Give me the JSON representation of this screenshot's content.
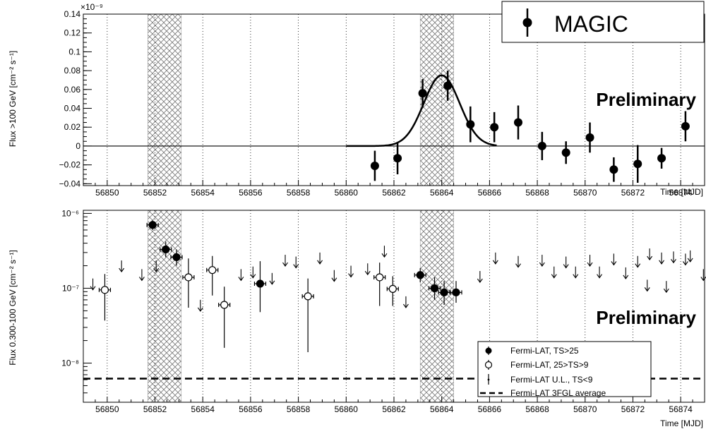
{
  "chart_data": [
    {
      "type": "scatter",
      "xlabel": "Time [MJD]",
      "ylabel": "Flux >100 GeV [cm⁻² s⁻¹]",
      "y_multiplier_label": "×10⁻⁹",
      "xlim": [
        56849,
        56875
      ],
      "ylim": [
        -0.042,
        0.14
      ],
      "x_ticks": [
        "56850",
        "56852",
        "56854",
        "56856",
        "56858",
        "56860",
        "56862",
        "56864",
        "56866",
        "56868",
        "56870",
        "56872",
        "56874"
      ],
      "y_ticks": [
        "−0.04",
        "−0.02",
        "0",
        "0.02",
        "0.04",
        "0.06",
        "0.08",
        "0.1",
        "0.12",
        "0.14"
      ],
      "grid": "vertical dotted lines at each day",
      "shaded_intervals": [
        [
          56851.7,
          56853.1
        ],
        [
          56863.1,
          56864.5
        ]
      ],
      "zero_line": true,
      "legend": {
        "position": "top-right",
        "entries": [
          "MAGIC"
        ]
      },
      "annotation": "Preliminary",
      "series": [
        {
          "name": "MAGIC",
          "points": [
            {
              "x": 56861.2,
              "y": -0.021,
              "yerr": 0.016
            },
            {
              "x": 56862.15,
              "y": -0.013,
              "yerr": 0.017
            },
            {
              "x": 56863.2,
              "y": 0.056,
              "yerr": 0.015
            },
            {
              "x": 56864.25,
              "y": 0.064,
              "yerr": 0.016
            },
            {
              "x": 56865.2,
              "y": 0.023,
              "yerr": 0.019
            },
            {
              "x": 56866.2,
              "y": 0.02,
              "yerr": 0.016
            },
            {
              "x": 56867.2,
              "y": 0.025,
              "yerr": 0.018
            },
            {
              "x": 56868.2,
              "y": 0.0,
              "yerr": 0.015
            },
            {
              "x": 56869.2,
              "y": -0.007,
              "yerr": 0.012
            },
            {
              "x": 56870.2,
              "y": 0.009,
              "yerr": 0.016
            },
            {
              "x": 56871.2,
              "y": -0.025,
              "yerr": 0.013
            },
            {
              "x": 56872.2,
              "y": -0.019,
              "yerr": 0.02
            },
            {
              "x": 56873.2,
              "y": -0.013,
              "yerr": 0.011
            },
            {
              "x": 56874.2,
              "y": 0.021,
              "yerr": 0.016
            }
          ]
        }
      ],
      "fit_curve": {
        "shape": "gaussian",
        "amplitude": 0.075,
        "mean": 56864.0,
        "sigma": 0.75,
        "x_range": [
          56860.0,
          56866.3
        ]
      }
    },
    {
      "type": "scatter",
      "xlabel": "Time [MJD]",
      "ylabel": "Flux  0.300-100 GeV [cm⁻² s⁻¹]",
      "y_scale": "log",
      "xlim": [
        56849,
        56875
      ],
      "ylim": [
        3e-09,
        1.1e-06
      ],
      "x_ticks": [
        "56850",
        "56852",
        "56854",
        "56856",
        "56858",
        "56860",
        "56862",
        "56864",
        "56866",
        "56868",
        "56870",
        "56872",
        "56874"
      ],
      "y_ticks": [
        {
          "value": 1e-08,
          "label": "10⁻⁸"
        },
        {
          "value": 1e-07,
          "label": "10⁻⁷"
        },
        {
          "value": 1e-06,
          "label": "10⁻⁶"
        }
      ],
      "grid": "vertical dotted lines at each day",
      "shaded_intervals": [
        [
          56851.7,
          56853.1
        ],
        [
          56863.1,
          56864.5
        ]
      ],
      "legend": {
        "position": "bottom-right",
        "entries": [
          "Fermi-LAT, TS>25",
          "Fermi-LAT, 25>TS>9",
          "Fermi-LAT U.L., TS<9",
          "Fermi-LAT 3FGL average"
        ]
      },
      "annotation": "Preliminary",
      "series": [
        {
          "name": "Fermi-LAT, TS>25",
          "points": [
            {
              "x": 56851.9,
              "y": 7e-07,
              "ylo": 6e-07,
              "yhi": 8e-07
            },
            {
              "x": 56852.45,
              "y": 3.3e-07,
              "ylo": 2.6e-07,
              "yhi": 4.2e-07
            },
            {
              "x": 56852.9,
              "y": 2.6e-07,
              "ylo": 2e-07,
              "yhi": 3.3e-07
            },
            {
              "x": 56856.4,
              "y": 1.15e-07,
              "ylo": 4.8e-08,
              "yhi": 2.3e-07
            },
            {
              "x": 56863.1,
              "y": 1.5e-07,
              "ylo": 1.2e-07,
              "yhi": 1.85e-07
            },
            {
              "x": 56863.7,
              "y": 1e-07,
              "ylo": 7e-08,
              "yhi": 1.4e-07
            },
            {
              "x": 56864.1,
              "y": 8.8e-08,
              "ylo": 6e-08,
              "yhi": 1.25e-07
            },
            {
              "x": 56864.6,
              "y": 8.8e-08,
              "ylo": 6.4e-08,
              "yhi": 1.25e-07
            }
          ]
        },
        {
          "name": "Fermi-LAT, 25>TS>9",
          "points": [
            {
              "x": 56849.9,
              "y": 9.5e-08,
              "ylo": 3.7e-08,
              "yhi": 1.55e-07
            },
            {
              "x": 56853.4,
              "y": 1.4e-07,
              "ylo": 5.5e-08,
              "yhi": 2.5e-07
            },
            {
              "x": 56854.4,
              "y": 1.75e-07,
              "ylo": 8e-08,
              "yhi": 2.7e-07
            },
            {
              "x": 56854.9,
              "y": 6e-08,
              "ylo": 1.6e-08,
              "yhi": 1.05e-07
            },
            {
              "x": 56858.4,
              "y": 7.8e-08,
              "ylo": 1.4e-08,
              "yhi": 1.35e-07
            },
            {
              "x": 56861.4,
              "y": 1.4e-07,
              "ylo": 5.8e-08,
              "yhi": 2.2e-07
            },
            {
              "x": 56861.95,
              "y": 9.8e-08,
              "ylo": 5.8e-08,
              "yhi": 1.45e-07
            }
          ]
        },
        {
          "name": "Fermi-LAT U.L., TS<9",
          "upper_limits": [
            {
              "x": 56849.4,
              "y": 1.35e-07
            },
            {
              "x": 56850.6,
              "y": 2.35e-07
            },
            {
              "x": 56851.45,
              "y": 1.8e-07
            },
            {
              "x": 56852.05,
              "y": 2.35e-07
            },
            {
              "x": 56853.9,
              "y": 7e-08
            },
            {
              "x": 56855.6,
              "y": 1.8e-07
            },
            {
              "x": 56856.1,
              "y": 1.95e-07
            },
            {
              "x": 56856.9,
              "y": 1.6e-07
            },
            {
              "x": 56857.45,
              "y": 2.8e-07
            },
            {
              "x": 56857.9,
              "y": 2.65e-07
            },
            {
              "x": 56858.9,
              "y": 3e-07
            },
            {
              "x": 56859.5,
              "y": 1.75e-07
            },
            {
              "x": 56860.2,
              "y": 2e-07
            },
            {
              "x": 56860.9,
              "y": 2.15e-07
            },
            {
              "x": 56861.6,
              "y": 3.7e-07
            },
            {
              "x": 56862.5,
              "y": 7.8e-08
            },
            {
              "x": 56865.6,
              "y": 1.7e-07
            },
            {
              "x": 56866.25,
              "y": 3e-07
            },
            {
              "x": 56867.2,
              "y": 2.7e-07
            },
            {
              "x": 56868.2,
              "y": 2.8e-07
            },
            {
              "x": 56869.2,
              "y": 2.65e-07
            },
            {
              "x": 56870.2,
              "y": 2.8e-07
            },
            {
              "x": 56871.2,
              "y": 2.9e-07
            },
            {
              "x": 56872.2,
              "y": 2.7e-07
            },
            {
              "x": 56873.2,
              "y": 3e-07
            },
            {
              "x": 56874.2,
              "y": 2.9e-07
            },
            {
              "x": 56868.7,
              "y": 1.95e-07
            },
            {
              "x": 56869.6,
              "y": 1.95e-07
            },
            {
              "x": 56870.6,
              "y": 1.95e-07
            },
            {
              "x": 56871.7,
              "y": 1.9e-07
            },
            {
              "x": 56872.7,
              "y": 3.4e-07
            },
            {
              "x": 56873.7,
              "y": 3.1e-07
            },
            {
              "x": 56874.4,
              "y": 3.2e-07
            },
            {
              "x": 56874.95,
              "y": 1.8e-07
            },
            {
              "x": 56872.6,
              "y": 1.3e-07
            },
            {
              "x": 56873.4,
              "y": 1.25e-07
            }
          ]
        },
        {
          "name": "Fermi-LAT 3FGL average",
          "constant": 6.2e-09
        }
      ]
    }
  ]
}
